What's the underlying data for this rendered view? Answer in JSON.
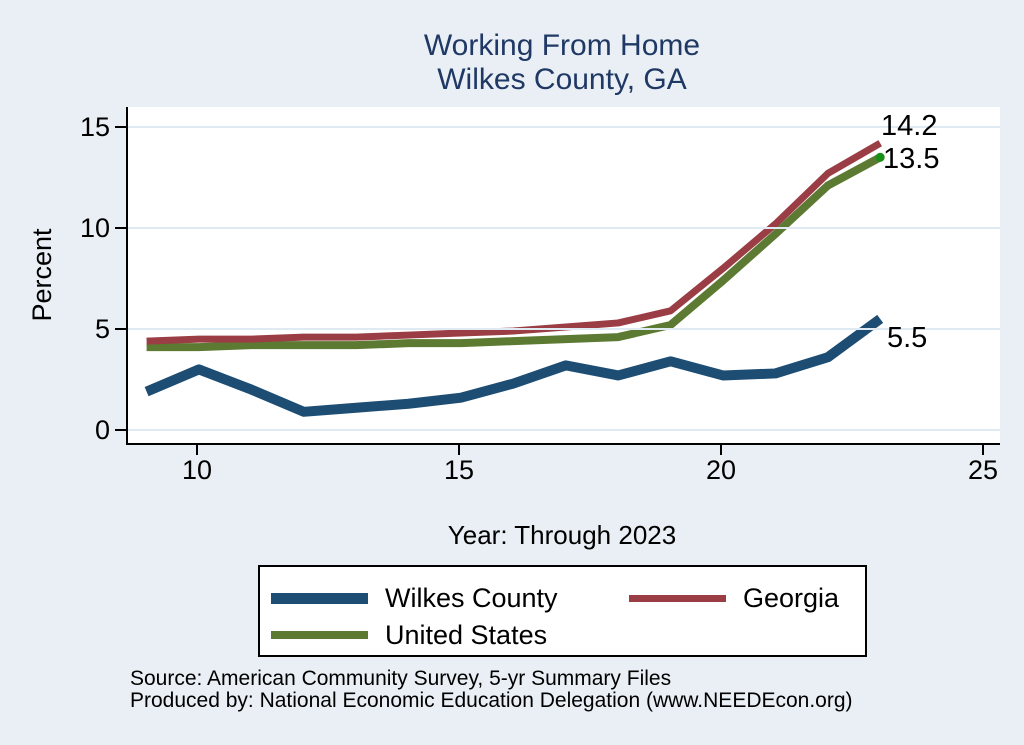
{
  "title": {
    "line1": "Working From Home",
    "line2": "Wilkes County, GA"
  },
  "axes": {
    "y_label": "Percent",
    "x_label": "Year: Through 2023",
    "y_ticks": [
      0,
      5,
      10,
      15
    ],
    "x_ticks": [
      10,
      15,
      20,
      25
    ]
  },
  "chart_data": {
    "type": "line",
    "title": "Working From Home - Wilkes County, GA",
    "xlabel": "Year: Through 2023",
    "ylabel": "Percent",
    "x": [
      9,
      10,
      11,
      12,
      13,
      14,
      15,
      16,
      17,
      18,
      19,
      20,
      21,
      22,
      23
    ],
    "xlim": [
      8.6,
      25.3
    ],
    "ylim": [
      -0.6,
      16.0
    ],
    "grid": true,
    "legend_position": "bottom",
    "series": [
      {
        "name": "Wilkes County",
        "color": "#1e4d73",
        "line_width": 10,
        "end_label": "5.5",
        "values": [
          1.9,
          3.0,
          2.0,
          0.9,
          1.1,
          1.3,
          1.6,
          2.3,
          3.2,
          2.7,
          3.4,
          2.7,
          2.8,
          3.6,
          5.5
        ]
      },
      {
        "name": "Georgia",
        "color": "#9a3d44",
        "line_width": 7,
        "end_label": "14.2",
        "values": [
          4.4,
          4.5,
          4.5,
          4.6,
          4.6,
          4.7,
          4.8,
          4.9,
          5.1,
          5.3,
          5.9,
          8.0,
          10.2,
          12.7,
          14.2
        ]
      },
      {
        "name": "United States",
        "color": "#5d7a33",
        "line_width": 8,
        "end_label": "13.5",
        "end_marker_color": "#169016",
        "values": [
          4.1,
          4.1,
          4.2,
          4.2,
          4.2,
          4.3,
          4.3,
          4.4,
          4.5,
          4.6,
          5.2,
          7.4,
          9.7,
          12.1,
          13.5
        ]
      }
    ]
  },
  "notes": {
    "source": "Source: American Community Survey, 5-yr Summary Files",
    "produced_by": "Produced by: National Economic Education Delegation (www.NEEDEcon.org)"
  },
  "colors": {
    "background": "#e9eff4",
    "plot_background": "#ffffff",
    "grid": "#dfeaf3",
    "title": "#1f3864",
    "axis": "#000000"
  }
}
